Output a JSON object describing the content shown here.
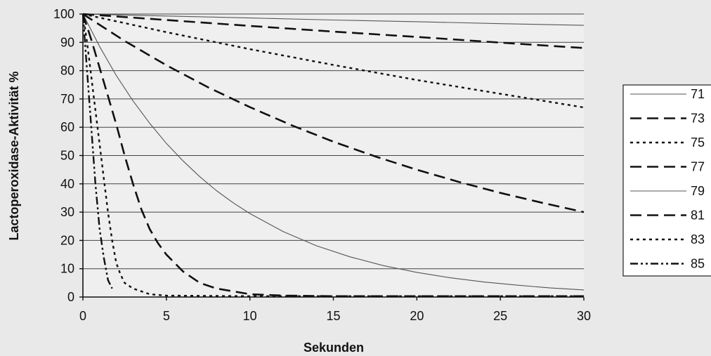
{
  "chart_data": {
    "type": "line",
    "title": "",
    "xlabel": "Sekunden",
    "ylabel": "Lactoperoxidase-Aktivität %",
    "xlim": [
      0,
      30
    ],
    "ylim": [
      0,
      100
    ],
    "xticks": [
      0,
      5,
      10,
      15,
      20,
      25,
      30
    ],
    "yticks": [
      0,
      10,
      20,
      30,
      40,
      50,
      60,
      70,
      80,
      90,
      100
    ],
    "grid": "horizontal",
    "legend_position": "right",
    "series": [
      {
        "name": "71",
        "line_style": "solid-thin",
        "points": [
          [
            0,
            100
          ],
          [
            5,
            99.3
          ],
          [
            10,
            98.6
          ],
          [
            15,
            97.9
          ],
          [
            20,
            97.3
          ],
          [
            25,
            96.6
          ],
          [
            30,
            96
          ]
        ]
      },
      {
        "name": "73",
        "line_style": "long-dash",
        "points": [
          [
            0,
            100
          ],
          [
            5,
            97.9
          ],
          [
            10,
            95.8
          ],
          [
            15,
            93.8
          ],
          [
            20,
            91.9
          ],
          [
            25,
            89.9
          ],
          [
            30,
            88
          ]
        ]
      },
      {
        "name": "75",
        "line_style": "short-dot",
        "points": [
          [
            0,
            100
          ],
          [
            5,
            93.6
          ],
          [
            10,
            87.6
          ],
          [
            15,
            82
          ],
          [
            20,
            76.7
          ],
          [
            25,
            71.8
          ],
          [
            30,
            67
          ]
        ]
      },
      {
        "name": "77",
        "line_style": "long-dash",
        "points": [
          [
            0,
            100
          ],
          [
            2.5,
            90.5
          ],
          [
            5,
            81.9
          ],
          [
            7.5,
            74.1
          ],
          [
            10,
            67.1
          ],
          [
            12.5,
            60.7
          ],
          [
            15,
            54.9
          ],
          [
            17.5,
            49.7
          ],
          [
            20,
            45
          ],
          [
            22.5,
            40.7
          ],
          [
            25,
            36.8
          ],
          [
            27.5,
            33.3
          ],
          [
            30,
            30
          ]
        ]
      },
      {
        "name": "79",
        "line_style": "solid-thin",
        "points": [
          [
            0,
            100
          ],
          [
            1,
            88.5
          ],
          [
            2,
            78.3
          ],
          [
            3,
            69.3
          ],
          [
            4,
            61.4
          ],
          [
            5,
            54.3
          ],
          [
            6,
            48.1
          ],
          [
            7,
            42.5
          ],
          [
            8,
            37.6
          ],
          [
            9,
            33.3
          ],
          [
            10,
            29.5
          ],
          [
            12,
            23.1
          ],
          [
            14,
            18.1
          ],
          [
            16,
            14.2
          ],
          [
            18,
            11.1
          ],
          [
            20,
            8.7
          ],
          [
            22,
            6.8
          ],
          [
            24,
            5.3
          ],
          [
            26,
            4.2
          ],
          [
            28,
            3.2
          ],
          [
            30,
            2.5
          ]
        ]
      },
      {
        "name": "81",
        "line_style": "long-dash",
        "points": [
          [
            0,
            100
          ],
          [
            0.5,
            91
          ],
          [
            1,
            81
          ],
          [
            1.5,
            71
          ],
          [
            2,
            61
          ],
          [
            2.5,
            50
          ],
          [
            3,
            40
          ],
          [
            3.5,
            31
          ],
          [
            4,
            24
          ],
          [
            4.5,
            19
          ],
          [
            5,
            15
          ],
          [
            6,
            9
          ],
          [
            7,
            5
          ],
          [
            8,
            3
          ],
          [
            9,
            2
          ],
          [
            10,
            1
          ],
          [
            12,
            0.5
          ],
          [
            15,
            0.3
          ],
          [
            20,
            0.3
          ],
          [
            30,
            0.3
          ]
        ]
      },
      {
        "name": "83",
        "line_style": "short-dot",
        "points": [
          [
            0,
            100
          ],
          [
            0.25,
            90
          ],
          [
            0.5,
            78
          ],
          [
            0.75,
            66
          ],
          [
            1,
            54
          ],
          [
            1.25,
            42
          ],
          [
            1.5,
            30
          ],
          [
            1.75,
            20
          ],
          [
            2,
            12
          ],
          [
            2.25,
            8
          ],
          [
            2.5,
            5
          ],
          [
            3,
            3
          ],
          [
            3.5,
            2
          ],
          [
            4,
            1
          ],
          [
            5,
            0.5
          ],
          [
            10,
            0.3
          ],
          [
            30,
            0.3
          ]
        ]
      },
      {
        "name": "85",
        "line_style": "dash-dot-dot",
        "points": [
          [
            0,
            100
          ],
          [
            0.25,
            80
          ],
          [
            0.5,
            60
          ],
          [
            0.75,
            40
          ],
          [
            1,
            24
          ],
          [
            1.25,
            14
          ],
          [
            1.5,
            6
          ],
          [
            1.75,
            3
          ]
        ]
      }
    ]
  }
}
